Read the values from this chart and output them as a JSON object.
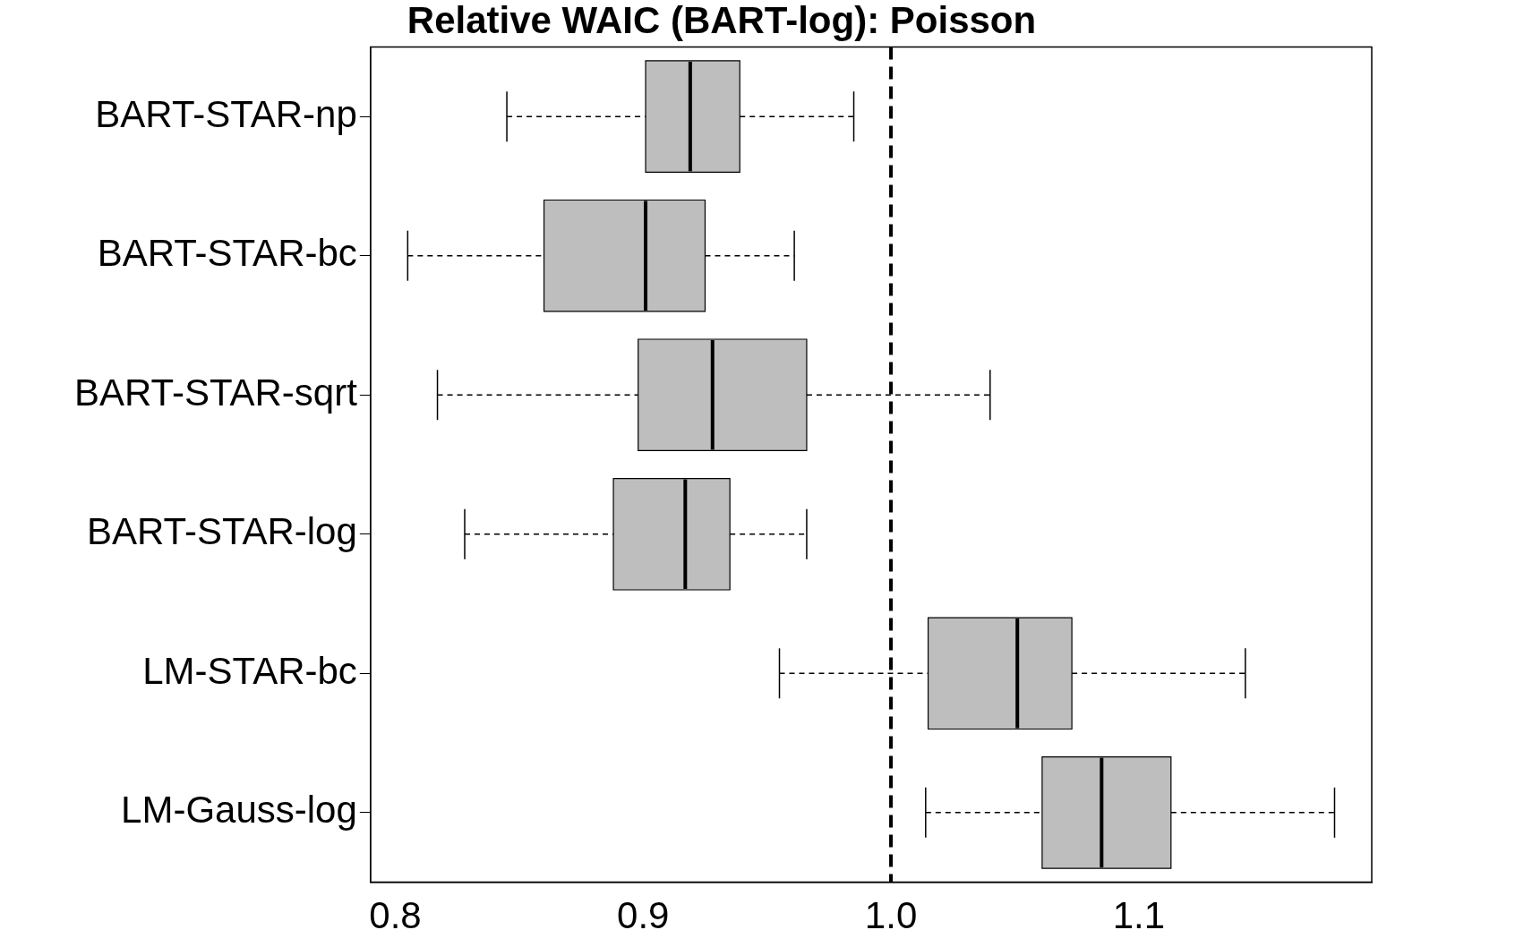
{
  "chart_data": {
    "type": "box",
    "title": "Relative WAIC (BART-log): Poisson",
    "orientation": "horizontal",
    "categories": [
      "BART-STAR-np",
      "BART-STAR-bc",
      "BART-STAR-sqrt",
      "BART-STAR-log",
      "LM-STAR-bc",
      "LM-Gauss-log"
    ],
    "boxes": [
      {
        "low": 0.845,
        "q1": 0.901,
        "median": 0.919,
        "q3": 0.939,
        "high": 0.985
      },
      {
        "low": 0.805,
        "q1": 0.86,
        "median": 0.901,
        "q3": 0.925,
        "high": 0.961
      },
      {
        "low": 0.817,
        "q1": 0.898,
        "median": 0.928,
        "q3": 0.966,
        "high": 1.04
      },
      {
        "low": 0.828,
        "q1": 0.888,
        "median": 0.917,
        "q3": 0.935,
        "high": 0.966
      },
      {
        "low": 0.955,
        "q1": 1.015,
        "median": 1.051,
        "q3": 1.073,
        "high": 1.143
      },
      {
        "low": 1.014,
        "q1": 1.061,
        "median": 1.085,
        "q3": 1.113,
        "high": 1.179
      }
    ],
    "color": "#bebebe",
    "xlim": [
      0.79,
      1.194
    ],
    "xticks": [
      0.8,
      0.9,
      {
        "value": 1,
        "label": "1.0"
      },
      1.1
    ],
    "ref_lines": [
      {
        "axis": "x",
        "value": 1,
        "color": "#000000",
        "line_style": "dashed"
      }
    ],
    "grid": false,
    "legend": false
  }
}
